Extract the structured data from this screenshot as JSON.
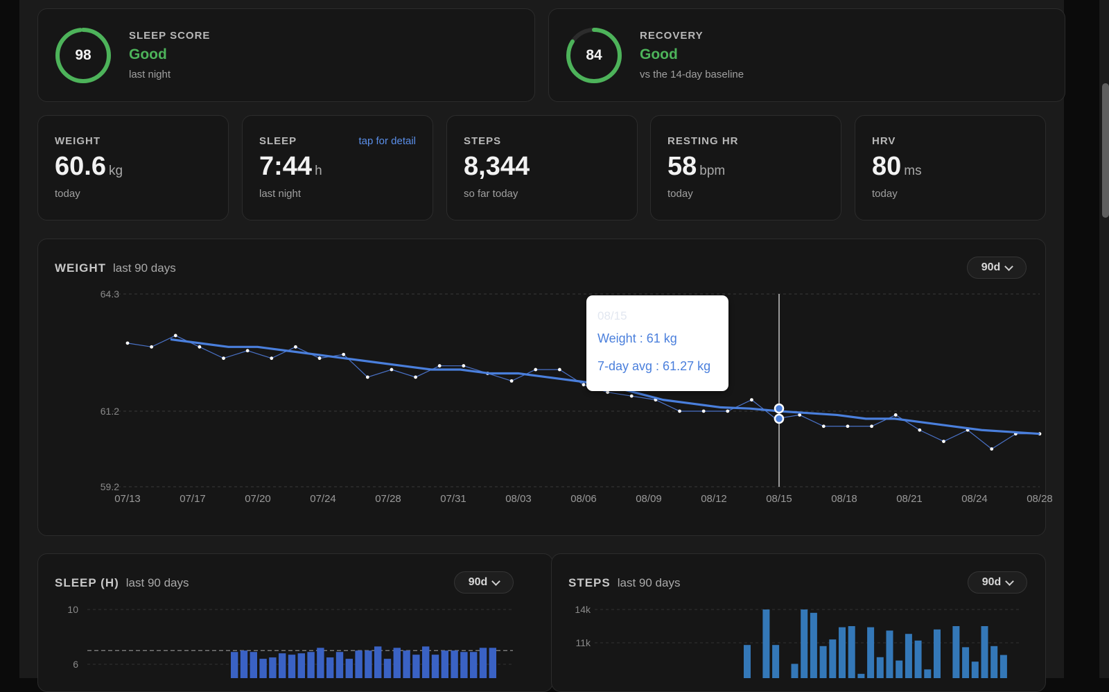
{
  "summary": {
    "sleep_score": {
      "value": "98",
      "fraction": 0.98,
      "label": "SLEEP SCORE",
      "status": "Good",
      "note": "last night"
    },
    "recovery": {
      "value": "84",
      "fraction": 0.84,
      "label": "RECOVERY",
      "status": "Good",
      "note": "vs the 14-day baseline"
    }
  },
  "stats": [
    {
      "label": "WEIGHT",
      "value": "60.6",
      "unit": "kg",
      "sub": "today",
      "link": ""
    },
    {
      "label": "SLEEP",
      "value": "7:44",
      "unit": "h",
      "sub": "last night",
      "link": "tap for detail"
    },
    {
      "label": "STEPS",
      "value": "8,344",
      "unit": "",
      "sub": "so far today",
      "link": ""
    },
    {
      "label": "RESTING HR",
      "value": "58",
      "unit": "bpm",
      "sub": "today",
      "link": ""
    },
    {
      "label": "HRV",
      "value": "80",
      "unit": "ms",
      "sub": "today",
      "link": ""
    }
  ],
  "colors": {
    "good": "#4db35a",
    "accent": "#4a7fdc",
    "link": "#5a8ee8",
    "bar": "#3a62c4",
    "steps_bar": "#3478b8"
  },
  "icons": {
    "range_chevron": "chevron-down-icon"
  },
  "weight_card": {
    "title": "WEIGHT",
    "subtitle": "last 90 days",
    "range": "90d"
  },
  "sleep_card": {
    "title": "SLEEP (H)",
    "subtitle": "last 90 days",
    "range": "90d"
  },
  "steps_card": {
    "title": "STEPS",
    "subtitle": "last 90 days",
    "range": "90d"
  },
  "tooltip": {
    "date": "08/15",
    "weight": "Weight : 61 kg",
    "avg": "7-day avg : 61.27 kg"
  },
  "chart_data": [
    {
      "type": "line",
      "title": "WEIGHT",
      "subtitle": "last 90 days",
      "yticks": [
        "64.3",
        "61.2",
        "59.2"
      ],
      "ylim": [
        59.2,
        64.3
      ],
      "x_tick_labels": [
        "07/13",
        "07/17",
        "07/20",
        "07/24",
        "07/28",
        "07/31",
        "08/03",
        "08/06",
        "08/09",
        "08/12",
        "08/15",
        "08/18",
        "08/21",
        "08/24",
        "08/28"
      ],
      "grid": true,
      "series": [
        {
          "values": [
            63.0,
            62.9,
            63.2,
            62.9,
            62.6,
            62.8,
            62.6,
            62.9,
            62.6,
            62.7,
            62.1,
            62.3,
            62.1,
            62.4,
            62.4,
            62.2,
            62.0,
            62.3,
            62.3,
            61.9,
            61.7,
            61.6,
            61.5,
            61.2,
            61.2,
            61.2,
            61.5,
            61.0,
            61.1,
            60.8,
            60.8,
            60.8,
            61.1,
            60.7,
            60.4,
            60.7,
            60.2,
            60.6,
            60.6
          ]
        },
        {
          "values": [
            63.1,
            63.0,
            62.9,
            62.9,
            62.8,
            62.7,
            62.6,
            62.5,
            62.4,
            62.3,
            62.3,
            62.2,
            62.2,
            62.1,
            62.0,
            61.9,
            61.7,
            61.5,
            61.4,
            61.3,
            61.27,
            61.2,
            61.15,
            61.1,
            61.0,
            61.0,
            60.9,
            60.8,
            60.7,
            60.65,
            60.6
          ]
        }
      ],
      "highlight": {
        "x": "08/15",
        "weight": 61,
        "avg": 61.27
      }
    },
    {
      "type": "bar",
      "title": "SLEEP (H)",
      "subtitle": "last 90 days",
      "yticks": [
        "10",
        "6"
      ],
      "reference_line": 7,
      "values": [
        6.9,
        7.0,
        6.9,
        6.4,
        6.5,
        6.8,
        6.7,
        6.8,
        6.9,
        7.2,
        6.5,
        6.9,
        6.4,
        7.0,
        7.0,
        7.3,
        6.4,
        7.2,
        7.0,
        6.7,
        7.3,
        6.7,
        7.0,
        7.0,
        6.9,
        6.9,
        7.2,
        7.2
      ]
    },
    {
      "type": "bar",
      "title": "STEPS",
      "subtitle": "last 90 days",
      "yticks": [
        "14k",
        "11k"
      ],
      "values": [
        10800,
        7800,
        14000,
        10800,
        7800,
        9100,
        14000,
        13700,
        10700,
        11300,
        12400,
        12500,
        8200,
        12400,
        9700,
        12100,
        9400,
        11800,
        11200,
        8600,
        12200,
        7800,
        12500,
        10600,
        9300,
        12500,
        10700,
        9900
      ]
    }
  ]
}
